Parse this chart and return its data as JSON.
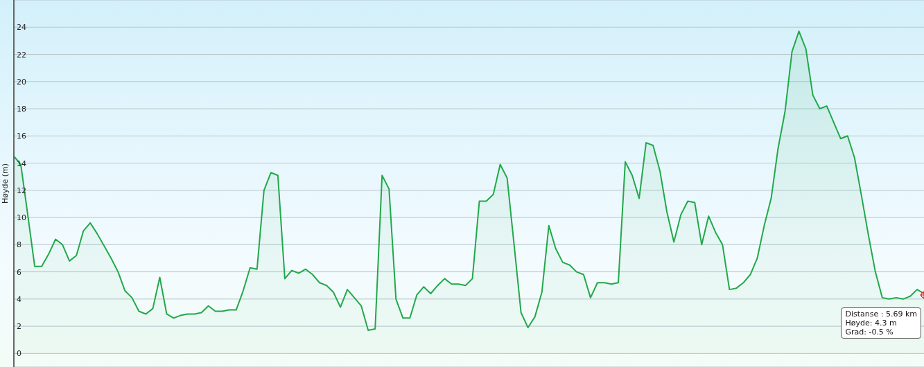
{
  "chart_data": {
    "type": "area",
    "ylabel": "Høyde (m)",
    "categories": [
      null,
      null,
      null,
      null,
      null,
      null,
      null,
      null,
      null,
      null,
      null,
      null,
      null,
      null,
      null,
      null,
      null,
      null,
      null,
      null,
      null,
      null,
      null,
      null,
      null,
      null,
      null,
      null,
      null,
      null,
      null,
      null,
      null,
      null,
      null,
      null,
      null,
      null,
      null,
      null,
      null,
      null,
      null,
      null,
      null,
      null,
      null,
      null,
      null,
      null,
      null,
      null,
      null,
      null,
      null,
      null,
      null,
      null,
      null,
      null,
      null,
      null,
      null,
      null,
      null,
      null,
      null,
      null,
      null,
      null,
      null,
      null,
      null,
      null,
      null,
      null,
      null,
      null,
      null,
      null,
      null,
      null,
      null,
      null,
      null,
      null,
      null,
      null,
      null,
      null,
      null,
      null,
      null,
      null,
      null,
      null,
      null,
      null,
      null,
      null,
      null,
      null,
      null,
      null,
      null,
      null,
      null,
      null,
      null,
      null,
      null,
      null,
      null,
      null,
      null,
      null,
      null,
      null,
      null,
      null,
      null,
      null,
      null,
      null,
      null,
      null,
      null,
      null,
      null,
      null,
      null,
      null
    ],
    "series": [
      {
        "color": "#22a84a",
        "values": [
          14.5,
          13.9,
          10.2,
          6.4,
          6.4,
          7.3,
          8.4,
          8.0,
          6.8,
          7.2,
          9.0,
          9.6,
          8.8,
          7.9,
          7.0,
          6.0,
          4.6,
          4.1,
          3.1,
          2.9,
          3.3,
          5.6,
          2.9,
          2.6,
          2.8,
          2.9,
          2.9,
          3.0,
          3.5,
          3.1,
          3.1,
          3.2,
          3.2,
          4.6,
          6.3,
          6.2,
          12.0,
          13.3,
          13.1,
          5.5,
          6.1,
          5.9,
          6.2,
          5.8,
          5.2,
          5.0,
          4.5,
          3.4,
          4.7,
          4.1,
          3.5,
          1.7,
          1.8,
          13.1,
          12.1,
          4.0,
          2.6,
          2.6,
          4.3,
          4.9,
          4.4,
          5.0,
          5.5,
          5.1,
          5.1,
          5.0,
          5.5,
          11.2,
          11.2,
          11.7,
          13.9,
          12.9,
          8.0,
          3.0,
          1.9,
          2.7,
          4.5,
          9.4,
          7.7,
          6.7,
          6.5,
          6.0,
          5.8,
          4.1,
          5.2,
          5.2,
          5.1,
          5.2,
          14.1,
          13.1,
          11.4,
          15.5,
          15.3,
          13.4,
          10.4,
          8.2,
          10.2,
          11.2,
          11.1,
          8.0,
          10.1,
          8.9,
          8.0,
          4.7,
          4.8,
          5.2,
          5.8,
          7.0,
          9.4,
          11.4,
          15.1,
          17.8,
          22.2,
          23.7,
          22.4,
          19.0,
          18.0,
          18.2,
          17.0,
          15.8,
          16.0,
          14.4,
          11.6,
          8.7,
          6.0,
          4.1,
          4.0,
          4.1,
          4.0,
          4.2,
          4.7,
          4.4
        ]
      }
    ],
    "ylim": [
      -1,
      26
    ],
    "yticks": [
      0,
      2,
      4,
      6,
      8,
      10,
      12,
      14,
      16,
      18,
      20,
      22,
      24
    ],
    "grid": "y",
    "tick_labels": "y",
    "annotations": [
      {
        "text": "Distanse : 5.69 km\nHøyde: 4.3 m\nGrad: -0.5 %",
        "y": 4.3
      }
    ]
  }
}
